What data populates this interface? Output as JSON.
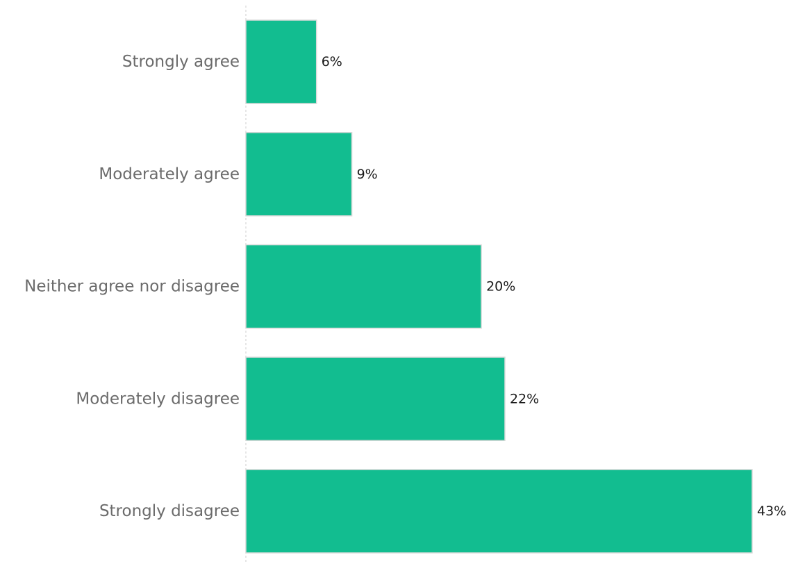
{
  "chart_data": {
    "type": "bar",
    "orientation": "horizontal",
    "categories": [
      "Strongly agree",
      "Moderately agree",
      "Neither agree nor disagree",
      "Moderately disagree",
      "Strongly disagree"
    ],
    "values": [
      6,
      9,
      20,
      22,
      43
    ],
    "value_labels": [
      "6%",
      "9%",
      "20%",
      "22%",
      "43%"
    ],
    "unit": "%",
    "title": "",
    "xlabel": "",
    "ylabel": "",
    "xlim": [
      0,
      43
    ],
    "grid": false,
    "legend": "none",
    "colors": {
      "bar": "#12bd90",
      "bar_edge": "#d9d9d9",
      "category_text": "#6b6b6b",
      "value_text": "#1a1a1a",
      "axis": "#cfcfcf"
    }
  }
}
